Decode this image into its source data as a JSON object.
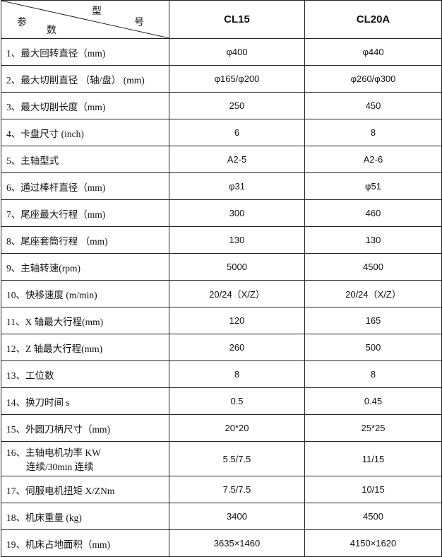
{
  "header": {
    "corner_top": "型",
    "corner_right": "号",
    "corner_left": "参",
    "corner_bottom": "数",
    "models": [
      "CL15",
      "CL20A"
    ]
  },
  "rows": [
    {
      "param": "1、最大回转直径（mm)",
      "cl15": "φ400",
      "cl20a": "φ440"
    },
    {
      "param": "2、最大切削直径 （轴/盘） (mm)",
      "cl15": "φ165/φ200",
      "cl20a": "φ260/φ300"
    },
    {
      "param": "3、最大切削长度（mm)",
      "cl15": "250",
      "cl20a": "450"
    },
    {
      "param": "4、卡盘尺寸 (inch)",
      "cl15": "6",
      "cl20a": "8"
    },
    {
      "param": "5、主轴型式",
      "cl15": "A2-5",
      "cl20a": "A2-6"
    },
    {
      "param": "6、通过棒杆直径（mm)",
      "cl15": "φ31",
      "cl20a": "φ51"
    },
    {
      "param": "7、尾座最大行程（mm)",
      "cl15": "300",
      "cl20a": "460"
    },
    {
      "param": "8、尾座套筒行程 （mm)",
      "cl15": "130",
      "cl20a": "130"
    },
    {
      "param": "9、主轴转速(rpm)",
      "cl15": "5000",
      "cl20a": "4500"
    },
    {
      "param": "10、快移速度 (m/min)",
      "cl15": "20/24（X/Z）",
      "cl20a": "20/24（X/Z）"
    },
    {
      "param": "11、X 轴最大行程(mm)",
      "cl15": "120",
      "cl20a": "165"
    },
    {
      "param": "12、Z 轴最大行程(mm)",
      "cl15": "260",
      "cl20a": "500"
    },
    {
      "param": "13、工位数",
      "cl15": "8",
      "cl20a": "8"
    },
    {
      "param": "14、换刀时间 s",
      "cl15": "0.5",
      "cl20a": "0.45"
    },
    {
      "param": "15、外圆刀柄尺寸（mm)",
      "cl15": "20*20",
      "cl20a": "25*25"
    },
    {
      "param": "16、主轴电机功率 KW",
      "param_line2": "连续/30min 连续",
      "cl15": "5.5/7.5",
      "cl20a": "11/15"
    },
    {
      "param": "17、伺服电机扭矩 X/ZNm",
      "cl15": "7.5/7.5",
      "cl20a": "10/15"
    },
    {
      "param": "18、机床重量 (kg)",
      "cl15": "3400",
      "cl20a": "4500"
    },
    {
      "param": "19、机床占地面积（mm)",
      "cl15": "3635×1460",
      "cl20a": "4150×1620"
    }
  ]
}
